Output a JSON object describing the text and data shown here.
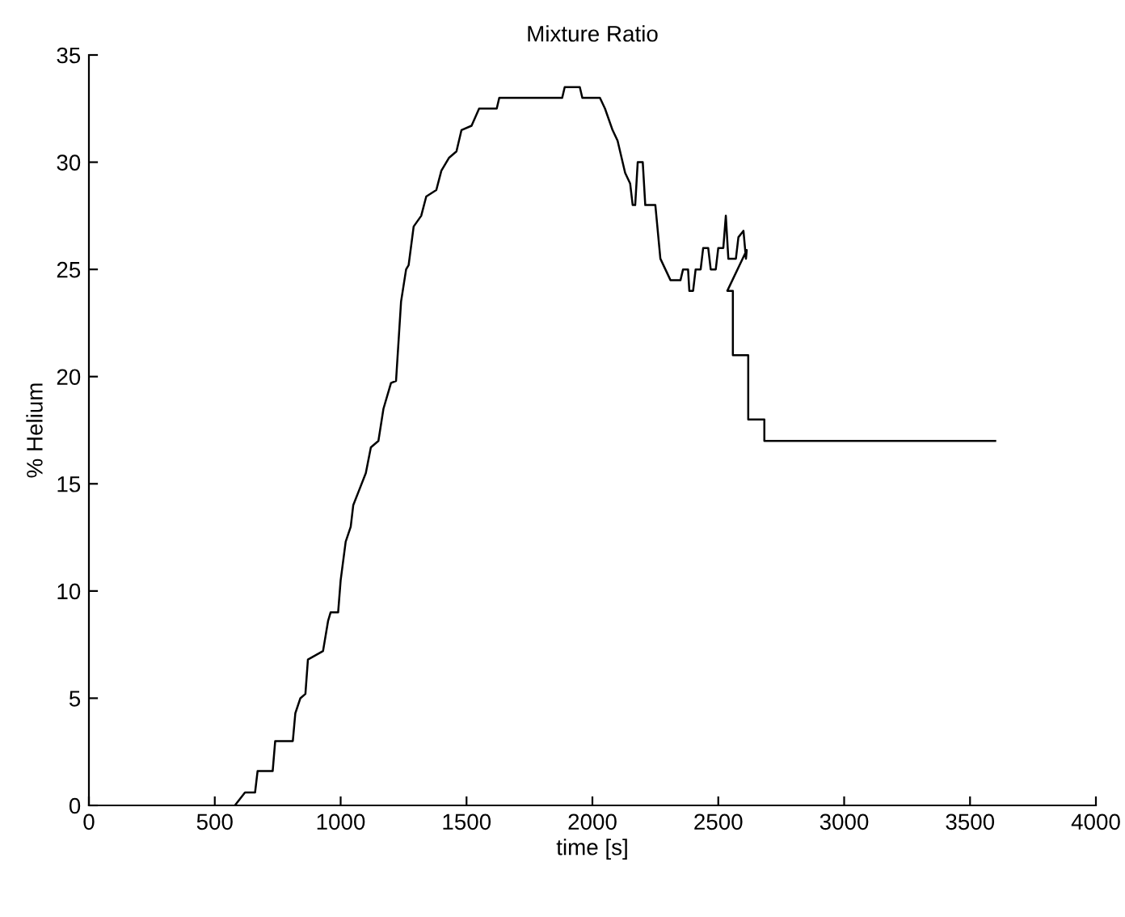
{
  "chart_data": {
    "type": "line",
    "title": "Mixture Ratio",
    "xlabel": "time [s]",
    "ylabel": "% Helium",
    "xlim": [
      0,
      4000
    ],
    "xticks": [
      0,
      500,
      1000,
      1500,
      2000,
      2500,
      3000,
      3500,
      4000
    ],
    "ylim": [
      0,
      35
    ],
    "yticks": [
      0,
      5,
      10,
      15,
      20,
      25,
      30,
      35
    ],
    "marker": "none",
    "line_style": "solid",
    "series": [
      {
        "color": "#000000",
        "x": [
          580,
          600,
          620,
          660,
          670,
          730,
          740,
          810,
          820,
          840,
          860,
          870,
          900,
          930,
          950,
          960,
          990,
          1000,
          1020,
          1040,
          1050,
          1070,
          1100,
          1120,
          1150,
          1170,
          1200,
          1220,
          1240,
          1260,
          1270,
          1290,
          1320,
          1340,
          1380,
          1400,
          1430,
          1460,
          1480,
          1520,
          1550,
          1620,
          1630,
          1880,
          1890,
          1950,
          1960,
          2030,
          2050,
          2080,
          2100,
          2130,
          2150,
          2160,
          2170,
          2180,
          2200,
          2210,
          2250,
          2270,
          2290,
          2310,
          2350,
          2360,
          2380,
          2385,
          2400,
          2410,
          2430,
          2440,
          2460,
          2470,
          2490,
          2500,
          2520,
          2530,
          2540,
          2570,
          2580,
          2600,
          2610,
          2613,
          2536,
          2558,
          2558,
          2619,
          2619,
          2683,
          2683,
          3600
        ],
        "values": [
          0,
          0.3,
          0.6,
          0.6,
          1.6,
          1.6,
          3,
          3,
          4.3,
          5,
          5.2,
          6.8,
          7,
          7.2,
          8.6,
          9,
          9,
          10.5,
          12.3,
          13,
          14,
          14.6,
          15.5,
          16.7,
          17,
          18.5,
          19.7,
          19.8,
          23.5,
          25,
          25.2,
          27,
          27.5,
          28.4,
          28.7,
          29.6,
          30.2,
          30.5,
          31.5,
          31.7,
          32.5,
          32.5,
          33,
          33,
          33.5,
          33.5,
          33,
          33,
          32.5,
          31.5,
          31,
          29.5,
          29,
          28,
          28,
          30,
          30,
          28,
          28,
          25.5,
          25,
          24.5,
          24.5,
          25,
          25,
          24,
          24,
          25,
          25,
          26,
          26,
          25,
          25,
          26,
          26,
          27.5,
          25.5,
          25.5,
          26.5,
          26.8,
          25.5,
          25.9,
          24,
          24,
          21,
          21,
          18,
          18,
          17,
          17
        ]
      }
    ]
  }
}
